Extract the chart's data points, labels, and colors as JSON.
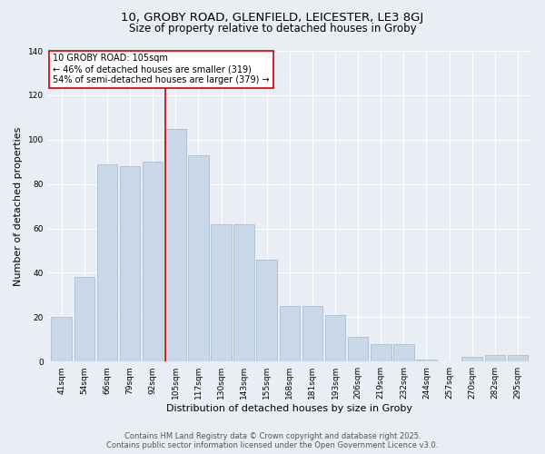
{
  "title1": "10, GROBY ROAD, GLENFIELD, LEICESTER, LE3 8GJ",
  "title2": "Size of property relative to detached houses in Groby",
  "xlabel": "Distribution of detached houses by size in Groby",
  "ylabel": "Number of detached properties",
  "categories": [
    "41sqm",
    "54sqm",
    "66sqm",
    "79sqm",
    "92sqm",
    "105sqm",
    "117sqm",
    "130sqm",
    "143sqm",
    "155sqm",
    "168sqm",
    "181sqm",
    "193sqm",
    "206sqm",
    "219sqm",
    "232sqm",
    "244sqm",
    "257sqm",
    "270sqm",
    "282sqm",
    "295sqm"
  ],
  "values": [
    20,
    38,
    89,
    88,
    90,
    105,
    93,
    62,
    62,
    46,
    25,
    25,
    21,
    11,
    8,
    8,
    1,
    0,
    2,
    3,
    3
  ],
  "bar_color": "#c8d8e8",
  "bar_edge_color": "#a0b8cc",
  "highlight_index": 5,
  "highlight_line_color": "#cc0000",
  "annotation_text": "10 GROBY ROAD: 105sqm\n← 46% of detached houses are smaller (319)\n54% of semi-detached houses are larger (379) →",
  "annotation_box_color": "#ffffff",
  "annotation_box_edge": "#cc0000",
  "ylim": [
    0,
    140
  ],
  "yticks": [
    0,
    20,
    40,
    60,
    80,
    100,
    120,
    140
  ],
  "background_color": "#e8eef4",
  "footer1": "Contains HM Land Registry data © Crown copyright and database right 2025.",
  "footer2": "Contains public sector information licensed under the Open Government Licence v3.0.",
  "title1_fontsize": 9.5,
  "title2_fontsize": 8.5,
  "axis_label_fontsize": 8,
  "tick_fontsize": 6.5,
  "annotation_fontsize": 7,
  "footer_fontsize": 6
}
